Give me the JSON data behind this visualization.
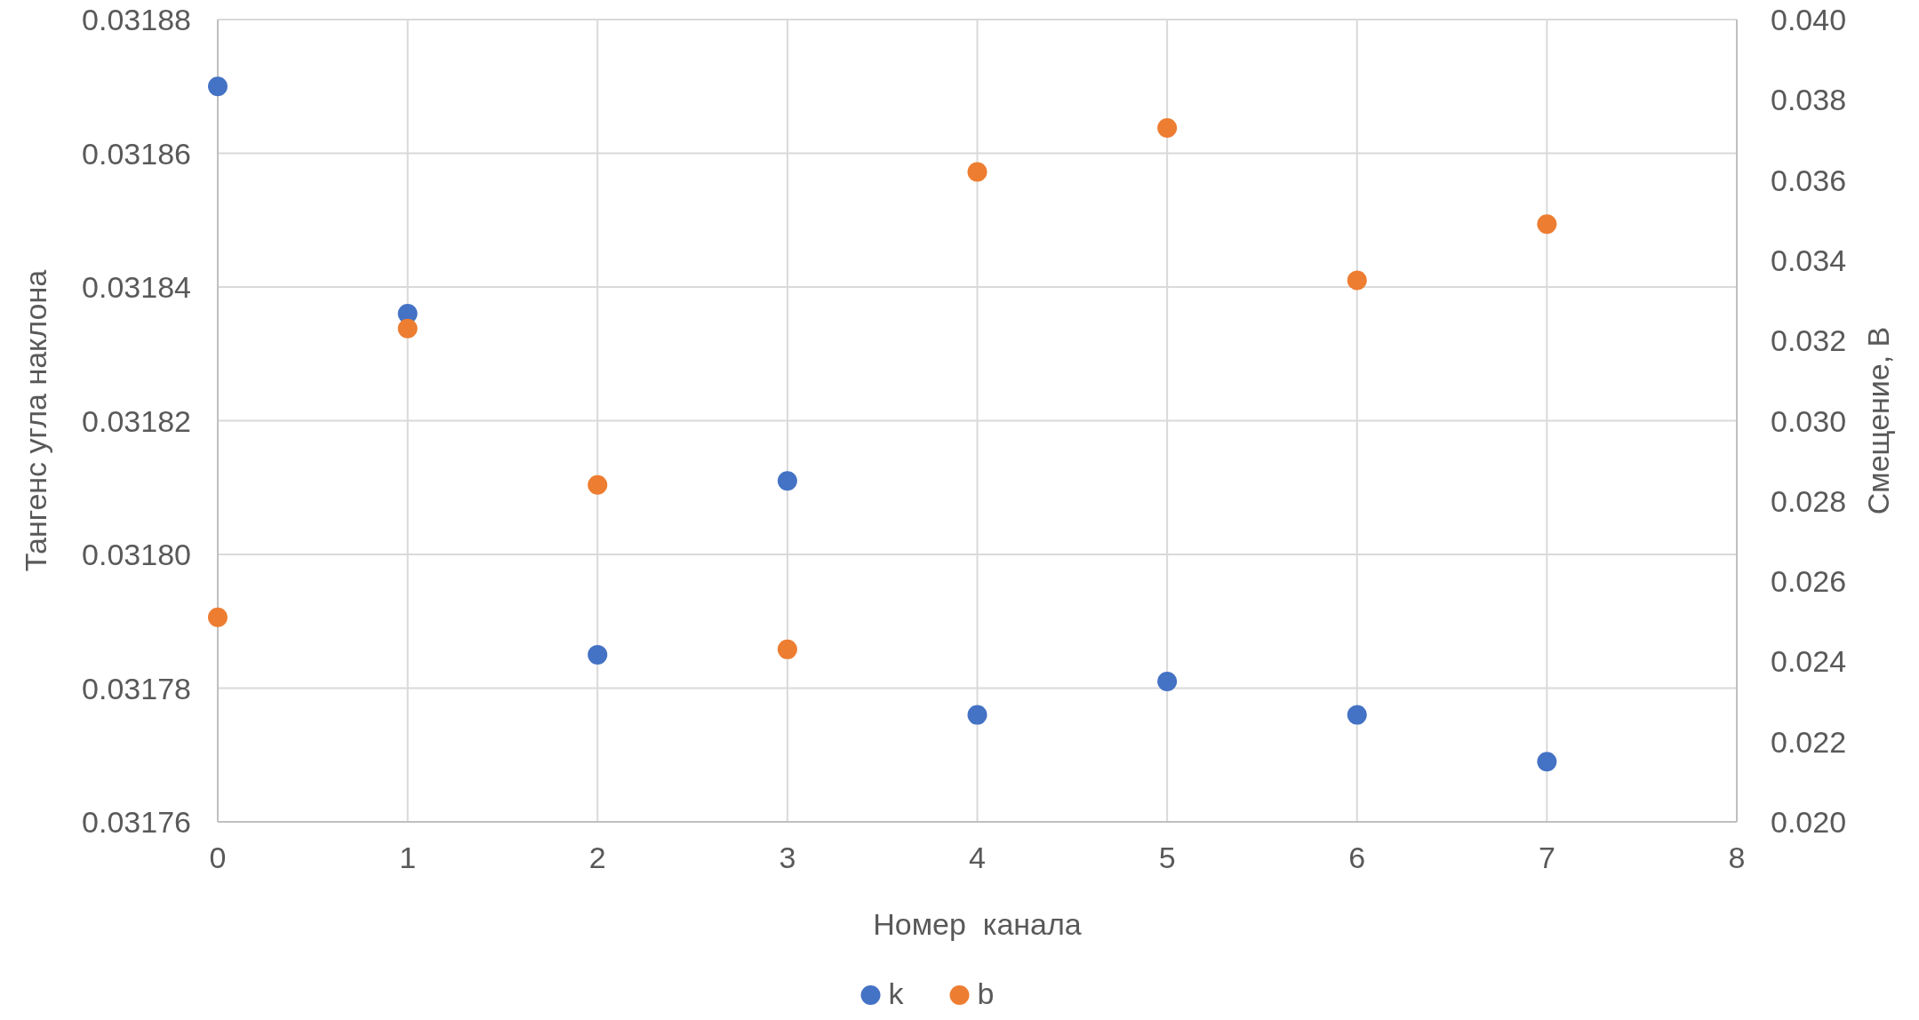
{
  "chart_data": {
    "type": "scatter",
    "xlabel": "Номер  канала",
    "ylabel": "Тангенс угла наклона",
    "y2label": "Смещение, В",
    "xlim": [
      0,
      8
    ],
    "xticks": [
      0,
      1,
      2,
      3,
      4,
      5,
      6,
      7,
      8
    ],
    "ylim": [
      0.03176,
      0.03188
    ],
    "yticks": [
      0.03176,
      0.03178,
      {
        "value": 0.0318,
        "label": "0.03180"
      },
      0.03182,
      0.03184,
      0.03186,
      0.03188
    ],
    "y2lim": [
      0.02,
      0.04
    ],
    "y2ticks": [
      {
        "value": 0.02,
        "label": "0.020"
      },
      0.022,
      0.024,
      0.026,
      0.028,
      {
        "value": 0.03,
        "label": "0.030"
      },
      0.032,
      0.034,
      0.036,
      0.038,
      {
        "value": 0.04,
        "label": "0.040"
      }
    ],
    "grid": true,
    "legend": "bottom",
    "marker": "circle",
    "series": [
      {
        "name": "k",
        "color": "#4472c4",
        "x": [
          0,
          1,
          2,
          3,
          4,
          5,
          6,
          7
        ],
        "values": [
          0.03187,
          0.031836,
          0.031785,
          0.031811,
          0.031776,
          0.031781,
          0.031776,
          0.031769
        ]
      },
      {
        "name": "b",
        "color": "#ed7d31",
        "axis": "y2",
        "x": [
          0,
          1,
          2,
          3,
          4,
          5,
          6,
          7
        ],
        "values": [
          0.0251,
          0.0323,
          0.0284,
          0.0243,
          0.0362,
          0.0373,
          0.0335,
          0.0349
        ]
      }
    ]
  }
}
